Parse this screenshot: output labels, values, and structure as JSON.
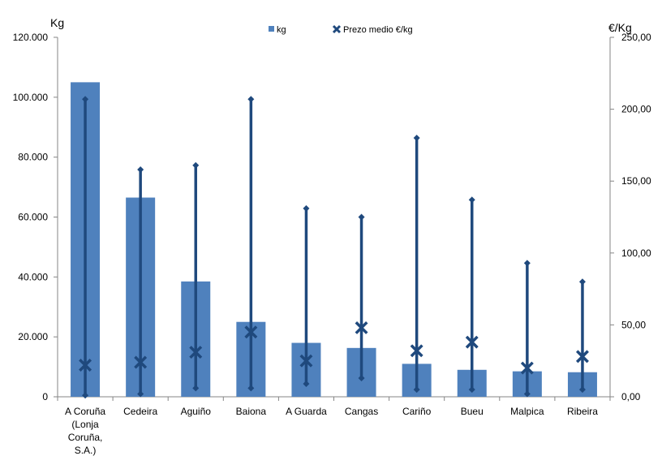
{
  "chart_data": {
    "type": "bar",
    "title": "",
    "left_axis_label": "Kg",
    "right_axis_label": "€/Kg",
    "categories": [
      [
        "A Coruña",
        "(Lonja",
        "Coruña,",
        "S.A.)"
      ],
      [
        "Cedeira"
      ],
      [
        "Aguiño"
      ],
      [
        "Baiona"
      ],
      [
        "A Guarda"
      ],
      [
        "Cangas"
      ],
      [
        "Cariño"
      ],
      [
        "Bueu"
      ],
      [
        "Malpica"
      ],
      [
        "Ribeira"
      ]
    ],
    "left_ylim": [
      0,
      120000
    ],
    "left_ticks": [
      0,
      20000,
      40000,
      60000,
      80000,
      100000,
      120000
    ],
    "left_tick_labels": [
      "0",
      "20.000",
      "40.000",
      "60.000",
      "80.000",
      "100.000",
      "120.000"
    ],
    "right_ylim": [
      0,
      250
    ],
    "right_ticks": [
      0,
      50,
      100,
      150,
      200,
      250
    ],
    "right_tick_labels": [
      "0,00",
      "50,00",
      "100,00",
      "150,00",
      "200,00",
      "250,00"
    ],
    "legend": {
      "position": "top",
      "items": [
        "kg",
        "Prezo medio €/kg"
      ]
    },
    "series": [
      {
        "name": "kg",
        "axis": "left",
        "kind": "bar",
        "values": [
          105000,
          66500,
          38500,
          25000,
          18000,
          16300,
          11000,
          9000,
          8500,
          8200
        ]
      },
      {
        "name": "Prezo medio €/kg",
        "axis": "right",
        "kind": "marker",
        "values": [
          22,
          24,
          31,
          45,
          25,
          48,
          32,
          38,
          20,
          28
        ]
      }
    ],
    "price_range": {
      "axis": "right",
      "min": [
        1,
        2,
        6,
        6,
        9,
        13,
        5,
        5,
        2,
        5
      ],
      "max": [
        207,
        158,
        161,
        207,
        131,
        125,
        180,
        137,
        93,
        80
      ]
    },
    "colors": {
      "bar": "#4f81bd",
      "range": "#1f497d",
      "axis": "#868686"
    }
  }
}
